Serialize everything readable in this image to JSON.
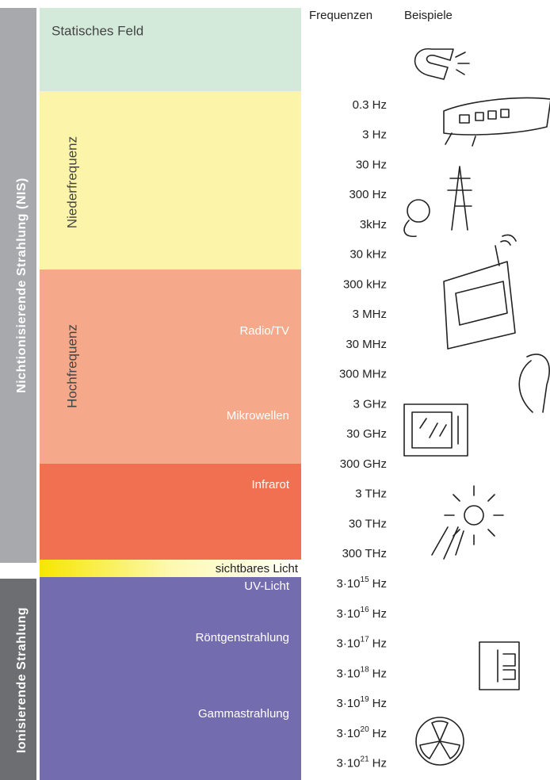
{
  "left_labels": {
    "non_ionizing": "Nichtionisierende Strahlung (NIS)",
    "ionizing": "Ionisierende Strahlung"
  },
  "headers": {
    "frequencies": "Frequenzen",
    "examples": "Beispiele"
  },
  "bands": {
    "static": "Statisches Feld",
    "low": "Niederfrequenz",
    "high": "Hochfrequenz"
  },
  "regions": [
    "Radio/TV",
    "Mikrowellen",
    "Infrarot",
    "sichtbares Licht",
    "UV-Licht",
    "Röntgenstrahlung",
    "Gammastrahlung"
  ],
  "frequencies": [
    "0.3 Hz",
    "3 Hz",
    "30 Hz",
    "300 Hz",
    "3kHz",
    "30 kHz",
    "300 kHz",
    "3 MHz",
    "30 MHz",
    "300 MHz",
    "3 GHz",
    "30 GHz",
    "300 GHz",
    "3 THz",
    "30 THz",
    "300 THz",
    {
      "mantissa": "3·10",
      "exponent": "15",
      "unit": "Hz"
    },
    {
      "mantissa": "3·10",
      "exponent": "16",
      "unit": "Hz"
    },
    {
      "mantissa": "3·10",
      "exponent": "17",
      "unit": "Hz"
    },
    {
      "mantissa": "3·10",
      "exponent": "18",
      "unit": "Hz"
    },
    {
      "mantissa": "3·10",
      "exponent": "19",
      "unit": "Hz"
    },
    {
      "mantissa": "3·10",
      "exponent": "20",
      "unit": "Hz"
    },
    {
      "mantissa": "3·10",
      "exponent": "21",
      "unit": "Hz"
    }
  ]
}
